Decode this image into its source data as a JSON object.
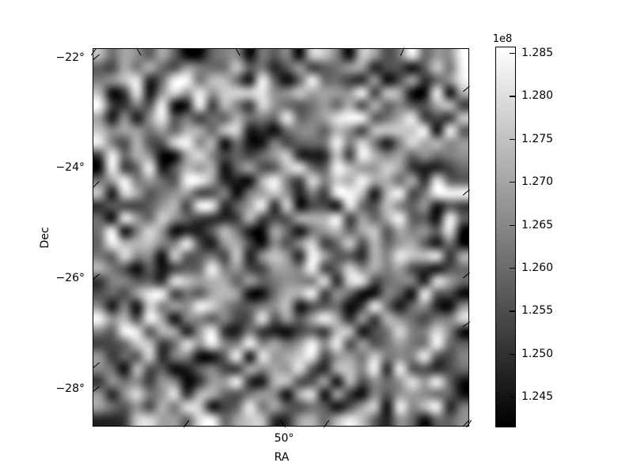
{
  "chart_data": {
    "type": "heatmap",
    "title": "",
    "xlabel": "RA",
    "ylabel": "Dec",
    "x_tick_labels": [
      "50°"
    ],
    "y_tick_labels": [
      "−22°",
      "−24°",
      "−26°",
      "−28°"
    ],
    "ylim_deg_estimate": [
      -28.7,
      -21.8
    ],
    "grid_shape": [
      30,
      30
    ],
    "interpolation": "bilinear",
    "cmap": "gray",
    "colorbar": {
      "orientation": "vertical",
      "position": "right",
      "offset_label": "1e8",
      "tick_labels": [
        "1.285",
        "1.280",
        "1.275",
        "1.270",
        "1.265",
        "1.260",
        "1.255",
        "1.250",
        "1.245"
      ],
      "tick_values_x1e8": [
        1.285,
        1.28,
        1.275,
        1.27,
        1.265,
        1.26,
        1.255,
        1.25,
        1.245
      ],
      "vmin_x1e8": 1.2416,
      "vmax_x1e8": 1.2857
    },
    "values_generator": {
      "seed": 42,
      "samples_per_cell": 3,
      "contrast": 1.9
    },
    "colors": {
      "background": "#ffffff",
      "frame": "#000000",
      "text": "#000000"
    }
  }
}
